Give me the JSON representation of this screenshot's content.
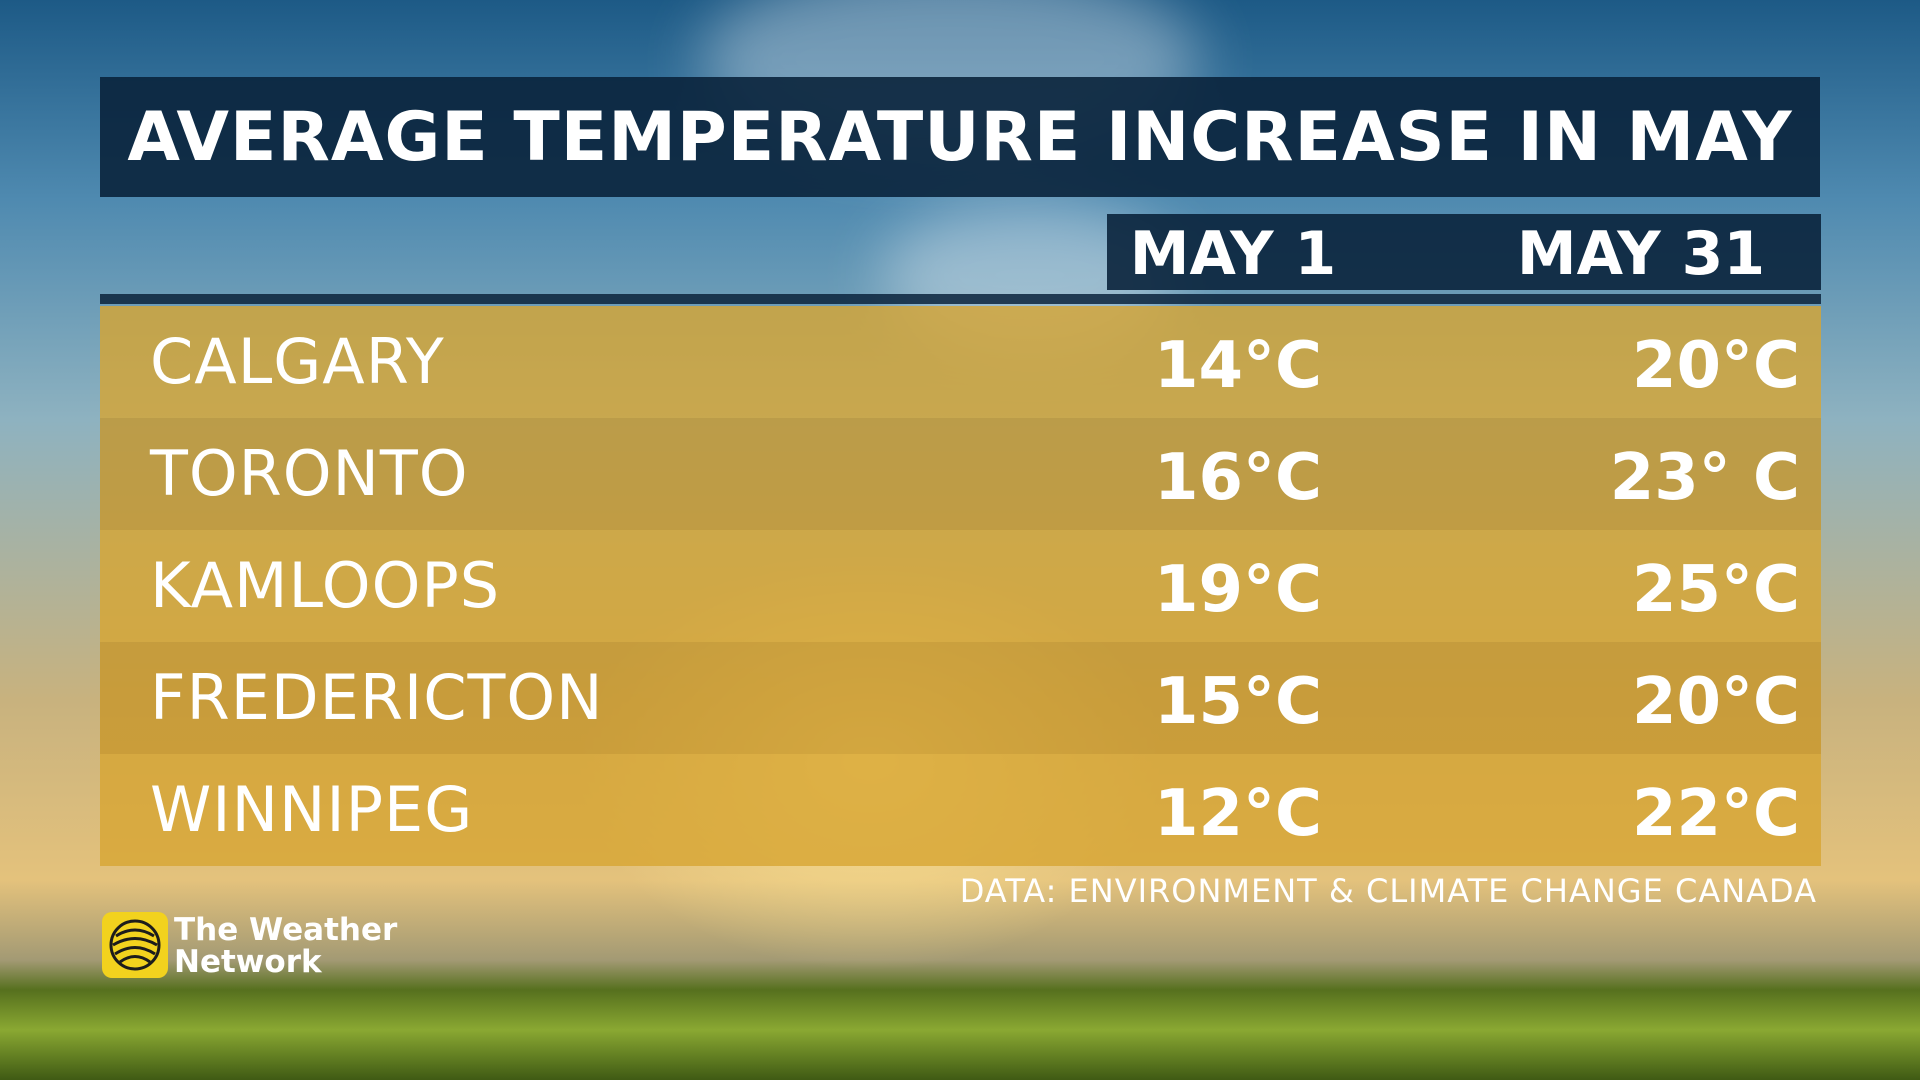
{
  "header": {
    "title": "AVERAGE TEMPERATURE INCREASE IN MAY"
  },
  "table": {
    "columns": [
      "MAY 1",
      "MAY 31"
    ],
    "rows": [
      [
        "CALGARY",
        "14°C",
        "20°C"
      ],
      [
        "TORONTO",
        "16°C",
        "23° C"
      ],
      [
        "KAMLOOPS",
        "19°C",
        "25°C"
      ],
      [
        "FREDERICTON",
        "15°C",
        "20°C"
      ],
      [
        "WINNIPEG",
        "12°C",
        "22°C"
      ]
    ]
  },
  "source": "DATA: ENVIRONMENT & CLIMATE CHANGE CANADA",
  "logo": {
    "line1": "The Weather",
    "line2": "Network"
  }
}
